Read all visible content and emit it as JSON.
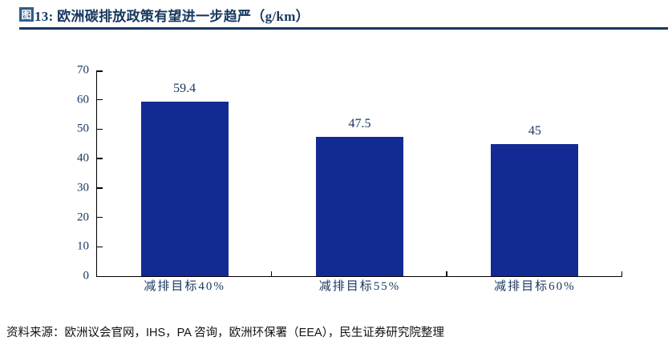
{
  "figure": {
    "badge_label": "图",
    "title": "13: 欧洲碳排放政策有望进一步趋严（g/km）"
  },
  "chart_data": {
    "type": "bar",
    "title": "欧洲碳排放政策有望进一步趋严",
    "unit": "g/km",
    "categories": [
      "减排目标40%",
      "减排目标55%",
      "减排目标60%"
    ],
    "values": [
      59.4,
      47.5,
      45
    ],
    "value_labels": [
      "59.4",
      "47.5",
      "45"
    ],
    "ylim": [
      0,
      70
    ],
    "yticks": [
      0,
      10,
      20,
      30,
      40,
      50,
      60,
      70
    ],
    "grid": false,
    "legend": "none",
    "bar_color": "#132A94",
    "axis_label_color": "#17365D"
  },
  "footer": {
    "source": "资料来源：欧洲议会官网，IHS，PA 咨询，欧洲环保署（EEA），民生证券研究院整理"
  },
  "colors": {
    "accent_navy": "#17375E",
    "badge_blue": "#2F5D8A",
    "bar_blue": "#132A94",
    "axis_black": "#000000"
  }
}
